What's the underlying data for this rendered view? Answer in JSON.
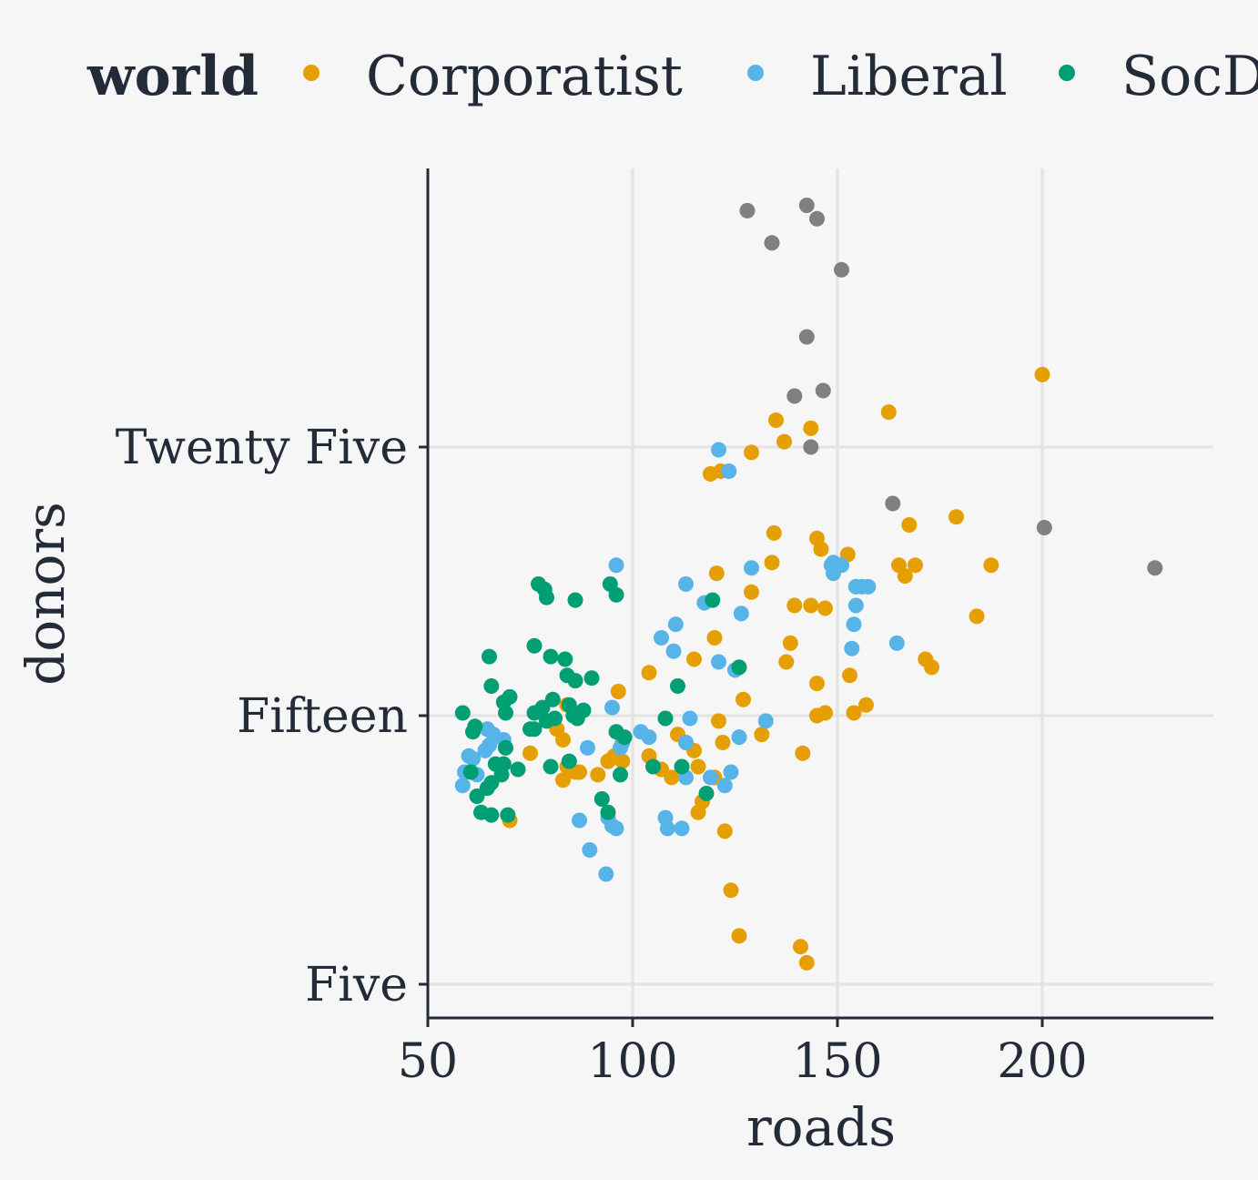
{
  "chart_data": {
    "type": "scatter",
    "title": "",
    "xlabel": "roads",
    "ylabel": "donors",
    "xlim": [
      50,
      240
    ],
    "ylim": [
      4.5,
      36
    ],
    "x_ticks": [
      {
        "value": 50,
        "label": "50"
      },
      {
        "value": 100,
        "label": "100"
      },
      {
        "value": 150,
        "label": "150"
      },
      {
        "value": 200,
        "label": "200"
      }
    ],
    "y_ticks": [
      {
        "value": 5,
        "label": "Five"
      },
      {
        "value": 15,
        "label": "Fifteen"
      },
      {
        "value": 25,
        "label": "Twenty Five"
      }
    ],
    "grid": true,
    "legend": {
      "title": "world",
      "position": "top",
      "entries": [
        {
          "label": "Corporatist",
          "color": "#e69f00"
        },
        {
          "label": "Liberal",
          "color": "#56b4e9"
        },
        {
          "label": "SocDem",
          "color": "#009e73"
        }
      ]
    },
    "series": [
      {
        "name": "",
        "color": "#808080",
        "points": [
          [
            128,
            33.8
          ],
          [
            142.5,
            34.0
          ],
          [
            145,
            33.5
          ],
          [
            134,
            32.6
          ],
          [
            151,
            31.6
          ],
          [
            142.5,
            29.1
          ],
          [
            146.5,
            27.1
          ],
          [
            139.5,
            26.9
          ],
          [
            143.5,
            25.0
          ],
          [
            163.5,
            22.9
          ],
          [
            200.5,
            22.0
          ],
          [
            227.5,
            20.5
          ]
        ]
      },
      {
        "name": "Corporatist",
        "color": "#e69f00",
        "points": [
          [
            200,
            27.7
          ],
          [
            162.5,
            26.3
          ],
          [
            135,
            26.0
          ],
          [
            143.5,
            25.7
          ],
          [
            137,
            25.2
          ],
          [
            129,
            24.8
          ],
          [
            119,
            24.0
          ],
          [
            121.5,
            24.1
          ],
          [
            179,
            22.4
          ],
          [
            167.5,
            22.1
          ],
          [
            134.5,
            21.8
          ],
          [
            145,
            21.6
          ],
          [
            146,
            21.2
          ],
          [
            152.5,
            21.0
          ],
          [
            169,
            20.6
          ],
          [
            165,
            20.6
          ],
          [
            187.5,
            20.6
          ],
          [
            166.5,
            20.2
          ],
          [
            120.5,
            20.3
          ],
          [
            134,
            20.7
          ],
          [
            129,
            19.6
          ],
          [
            139.5,
            19.1
          ],
          [
            143.5,
            19.1
          ],
          [
            147,
            19.0
          ],
          [
            184,
            18.7
          ],
          [
            120,
            17.9
          ],
          [
            138.5,
            17.7
          ],
          [
            171.5,
            17.1
          ],
          [
            173,
            16.8
          ],
          [
            137.5,
            17.0
          ],
          [
            115,
            17.1
          ],
          [
            104,
            16.6
          ],
          [
            96.5,
            15.9
          ],
          [
            145,
            16.2
          ],
          [
            153,
            16.5
          ],
          [
            127,
            15.6
          ],
          [
            157,
            15.4
          ],
          [
            84,
            15.4
          ],
          [
            147,
            15.1
          ],
          [
            145,
            15.0
          ],
          [
            154,
            15.1
          ],
          [
            121,
            14.8
          ],
          [
            81.5,
            14.5
          ],
          [
            111,
            14.3
          ],
          [
            83,
            14.1
          ],
          [
            131.5,
            14.3
          ],
          [
            122,
            14.0
          ],
          [
            115,
            13.7
          ],
          [
            94,
            13.3
          ],
          [
            104,
            13.5
          ],
          [
            141.5,
            13.6
          ],
          [
            75,
            13.6
          ],
          [
            95.5,
            13.5
          ],
          [
            97.5,
            13.3
          ],
          [
            107,
            13.0
          ],
          [
            84,
            13.1
          ],
          [
            86,
            12.9
          ],
          [
            116,
            13.1
          ],
          [
            87,
            12.9
          ],
          [
            91.5,
            12.8
          ],
          [
            83,
            12.6
          ],
          [
            109.5,
            12.7
          ],
          [
            120,
            12.7
          ],
          [
            117,
            11.8
          ],
          [
            116,
            11.4
          ],
          [
            70,
            11.1
          ],
          [
            122.5,
            10.7
          ],
          [
            124,
            8.5
          ],
          [
            126,
            6.8
          ],
          [
            141,
            6.4
          ],
          [
            142.5,
            5.8
          ]
        ]
      },
      {
        "name": "Liberal",
        "color": "#56b4e9",
        "points": [
          [
            121,
            24.9
          ],
          [
            123.5,
            24.1
          ],
          [
            149,
            20.7
          ],
          [
            150,
            20.6
          ],
          [
            151,
            20.6
          ],
          [
            149,
            20.3
          ],
          [
            148.5,
            20.6
          ],
          [
            96,
            20.6
          ],
          [
            129,
            20.5
          ],
          [
            154.5,
            19.8
          ],
          [
            156,
            19.8
          ],
          [
            157.5,
            19.8
          ],
          [
            113,
            19.9
          ],
          [
            117.5,
            19.2
          ],
          [
            126.5,
            18.8
          ],
          [
            154.5,
            19.1
          ],
          [
            154,
            18.4
          ],
          [
            110.5,
            18.4
          ],
          [
            107,
            17.9
          ],
          [
            164.5,
            17.7
          ],
          [
            153.5,
            17.5
          ],
          [
            110,
            17.4
          ],
          [
            121,
            17.0
          ],
          [
            125,
            16.7
          ],
          [
            95,
            15.3
          ],
          [
            114,
            14.9
          ],
          [
            132.5,
            14.8
          ],
          [
            102,
            14.4
          ],
          [
            104,
            14.2
          ],
          [
            113,
            14.0
          ],
          [
            126,
            14.2
          ],
          [
            97.5,
            14.0
          ],
          [
            97,
            13.8
          ],
          [
            89,
            13.8
          ],
          [
            64.5,
            14.5
          ],
          [
            66,
            14.3
          ],
          [
            68.5,
            14.1
          ],
          [
            65,
            13.9
          ],
          [
            64,
            13.7
          ],
          [
            60,
            13.5
          ],
          [
            61,
            13.4
          ],
          [
            59,
            12.9
          ],
          [
            62,
            12.8
          ],
          [
            113,
            12.7
          ],
          [
            124,
            12.9
          ],
          [
            122.5,
            12.4
          ],
          [
            58.5,
            12.4
          ],
          [
            87,
            11.1
          ],
          [
            94,
            11.2
          ],
          [
            95,
            10.9
          ],
          [
            96,
            10.8
          ],
          [
            108,
            11.2
          ],
          [
            108.5,
            10.8
          ],
          [
            112,
            10.8
          ],
          [
            89.5,
            10.0
          ],
          [
            93.5,
            9.1
          ],
          [
            119,
            12.7
          ]
        ]
      },
      {
        "name": "SocDem",
        "color": "#009e73",
        "points": [
          [
            77,
            19.9
          ],
          [
            78.5,
            19.7
          ],
          [
            79,
            19.4
          ],
          [
            86,
            19.3
          ],
          [
            94.5,
            19.9
          ],
          [
            96,
            19.5
          ],
          [
            119.5,
            19.3
          ],
          [
            126,
            16.8
          ],
          [
            76,
            17.6
          ],
          [
            80,
            17.2
          ],
          [
            83.5,
            17.1
          ],
          [
            84,
            16.5
          ],
          [
            86,
            16.3
          ],
          [
            90,
            16.4
          ],
          [
            111,
            16.1
          ],
          [
            65,
            17.2
          ],
          [
            65.5,
            16.1
          ],
          [
            68.5,
            15.5
          ],
          [
            70,
            15.7
          ],
          [
            69,
            15.1
          ],
          [
            58.5,
            15.1
          ],
          [
            76,
            15.1
          ],
          [
            78,
            15.3
          ],
          [
            80.5,
            15.6
          ],
          [
            84.5,
            15.4
          ],
          [
            85.5,
            15.0
          ],
          [
            88,
            15.2
          ],
          [
            86.5,
            14.9
          ],
          [
            79,
            14.8
          ],
          [
            81,
            14.9
          ],
          [
            76,
            14.5
          ],
          [
            75,
            14.5
          ],
          [
            61.5,
            14.6
          ],
          [
            61,
            14.4
          ],
          [
            69,
            13.8
          ],
          [
            96,
            14.4
          ],
          [
            98,
            14.2
          ],
          [
            108,
            14.9
          ],
          [
            84.5,
            13.3
          ],
          [
            80,
            13.1
          ],
          [
            72,
            13.0
          ],
          [
            68.5,
            13.2
          ],
          [
            68,
            12.8
          ],
          [
            66.5,
            13.2
          ],
          [
            60.5,
            12.9
          ],
          [
            65.5,
            12.5
          ],
          [
            64.5,
            12.3
          ],
          [
            62,
            12.0
          ],
          [
            63,
            11.4
          ],
          [
            65.5,
            11.3
          ],
          [
            69.5,
            11.3
          ],
          [
            92.5,
            11.9
          ],
          [
            94,
            11.4
          ],
          [
            97,
            12.8
          ],
          [
            105,
            13.1
          ],
          [
            112,
            13.1
          ],
          [
            118,
            12.1
          ]
        ]
      }
    ]
  }
}
